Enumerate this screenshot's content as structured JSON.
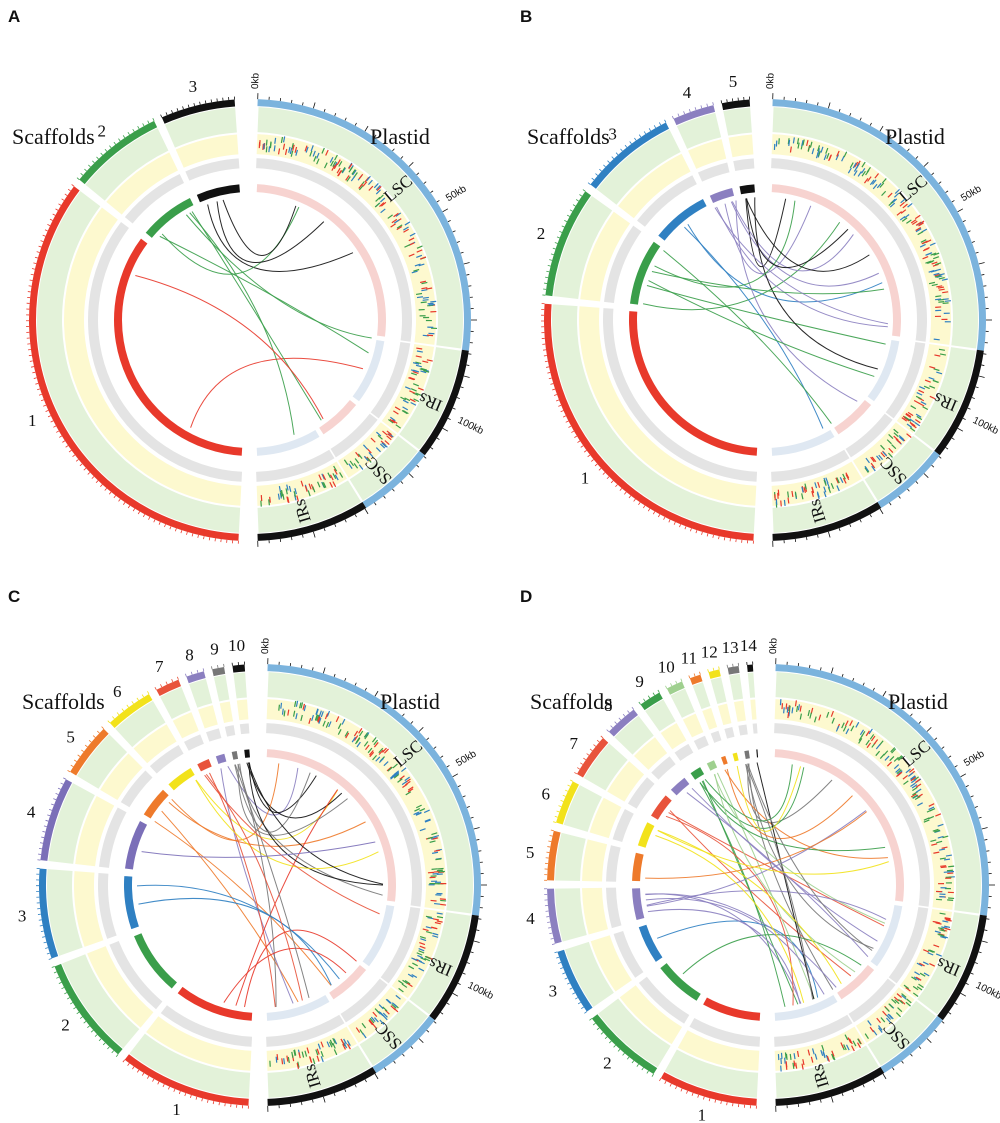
{
  "panels": [
    {
      "label": "A",
      "scaffolds_title": "Scaffolds",
      "plastid_title": "Plastid",
      "scaffolds": [
        {
          "label": "1",
          "color": "#e8392b",
          "size": 70
        },
        {
          "label": "2",
          "color": "#3a9e4a",
          "size": 14
        },
        {
          "label": "3",
          "color": "#111111",
          "size": 11
        }
      ],
      "regions": [
        {
          "label": "LSC",
          "color": "#7bb3dd",
          "size": 84
        },
        {
          "label": "IRs",
          "color": "#111111",
          "size": 26
        },
        {
          "label": "SSC",
          "color": "#7bb3dd",
          "size": 18
        },
        {
          "label": "IRs",
          "color": "#111111",
          "size": 26
        }
      ],
      "plastid_ticks": [
        "0kb",
        "50kb",
        "100kb"
      ]
    },
    {
      "label": "B",
      "scaffolds_title": "Scaffolds",
      "plastid_title": "Plastid",
      "scaffolds": [
        {
          "label": "1",
          "color": "#e8392b",
          "size": 50
        },
        {
          "label": "2",
          "color": "#3a9e4a",
          "size": 16
        },
        {
          "label": "3",
          "color": "#2f80c2",
          "size": 14
        },
        {
          "label": "4",
          "color": "#8b7fc0",
          "size": 6
        },
        {
          "label": "5",
          "color": "#111111",
          "size": 4
        }
      ],
      "regions": [
        {
          "label": "LSC",
          "color": "#7bb3dd",
          "size": 84
        },
        {
          "label": "IRs",
          "color": "#111111",
          "size": 26
        },
        {
          "label": "SSC",
          "color": "#7bb3dd",
          "size": 18
        },
        {
          "label": "IRs",
          "color": "#111111",
          "size": 26
        }
      ],
      "plastid_ticks": [
        "0kb",
        "50kb",
        "100kb"
      ]
    },
    {
      "label": "C",
      "scaffolds_title": "Scaffolds",
      "plastid_title": "Plastid",
      "scaffolds": [
        {
          "label": "1",
          "color": "#e8392b",
          "size": 22
        },
        {
          "label": "2",
          "color": "#3a9e4a",
          "size": 18
        },
        {
          "label": "3",
          "color": "#2f80c2",
          "size": 15
        },
        {
          "label": "4",
          "color": "#7b6fb8",
          "size": 14
        },
        {
          "label": "5",
          "color": "#ee7a2b",
          "size": 9
        },
        {
          "label": "6",
          "color": "#f2e21b",
          "size": 8
        },
        {
          "label": "7",
          "color": "#e8533b",
          "size": 4
        },
        {
          "label": "8",
          "color": "#8b7fc0",
          "size": 3
        },
        {
          "label": "9",
          "color": "#777777",
          "size": 2
        },
        {
          "label": "10",
          "color": "#111111",
          "size": 2
        }
      ],
      "regions": [
        {
          "label": "LSC",
          "color": "#7bb3dd",
          "size": 84
        },
        {
          "label": "IRs",
          "color": "#111111",
          "size": 26
        },
        {
          "label": "SSC",
          "color": "#7bb3dd",
          "size": 18
        },
        {
          "label": "IRs",
          "color": "#111111",
          "size": 26
        }
      ],
      "plastid_ticks": [
        "0kb",
        "50kb",
        "100kb"
      ]
    },
    {
      "label": "D",
      "scaffolds_title": "Scaffolds",
      "plastid_title": "Plastid",
      "scaffolds": [
        {
          "label": "1",
          "color": "#e8392b",
          "size": 18
        },
        {
          "label": "2",
          "color": "#3a9e4a",
          "size": 15
        },
        {
          "label": "3",
          "color": "#2f80c2",
          "size": 12
        },
        {
          "label": "4",
          "color": "#8b7fc0",
          "size": 10
        },
        {
          "label": "5",
          "color": "#ee7a2b",
          "size": 9
        },
        {
          "label": "6",
          "color": "#f2e21b",
          "size": 8
        },
        {
          "label": "7",
          "color": "#e8533b",
          "size": 8
        },
        {
          "label": "8",
          "color": "#8b7fc0",
          "size": 6
        },
        {
          "label": "9",
          "color": "#3a9e4a",
          "size": 4
        },
        {
          "label": "10",
          "color": "#9fd08f",
          "size": 3
        },
        {
          "label": "11",
          "color": "#ee7a2b",
          "size": 2
        },
        {
          "label": "12",
          "color": "#f2e21b",
          "size": 2
        },
        {
          "label": "13",
          "color": "#777777",
          "size": 2
        },
        {
          "label": "14",
          "color": "#111111",
          "size": 1
        }
      ],
      "regions": [
        {
          "label": "LSC",
          "color": "#7bb3dd",
          "size": 84
        },
        {
          "label": "IRs",
          "color": "#111111",
          "size": 26
        },
        {
          "label": "SSC",
          "color": "#7bb3dd",
          "size": 18
        },
        {
          "label": "IRs",
          "color": "#111111",
          "size": 26
        }
      ],
      "plastid_ticks": [
        "0kb",
        "50kb",
        "100kb"
      ]
    }
  ],
  "colors": {
    "green_track": "#e3f2d9",
    "yellow_track": "#fdf9cf",
    "grey_track": "#e4e4e4",
    "pink_inner": "#f7d3d0",
    "snp_red": "#e8392b",
    "snp_blue": "#2f80c2",
    "snp_green": "#3a9e4a"
  }
}
